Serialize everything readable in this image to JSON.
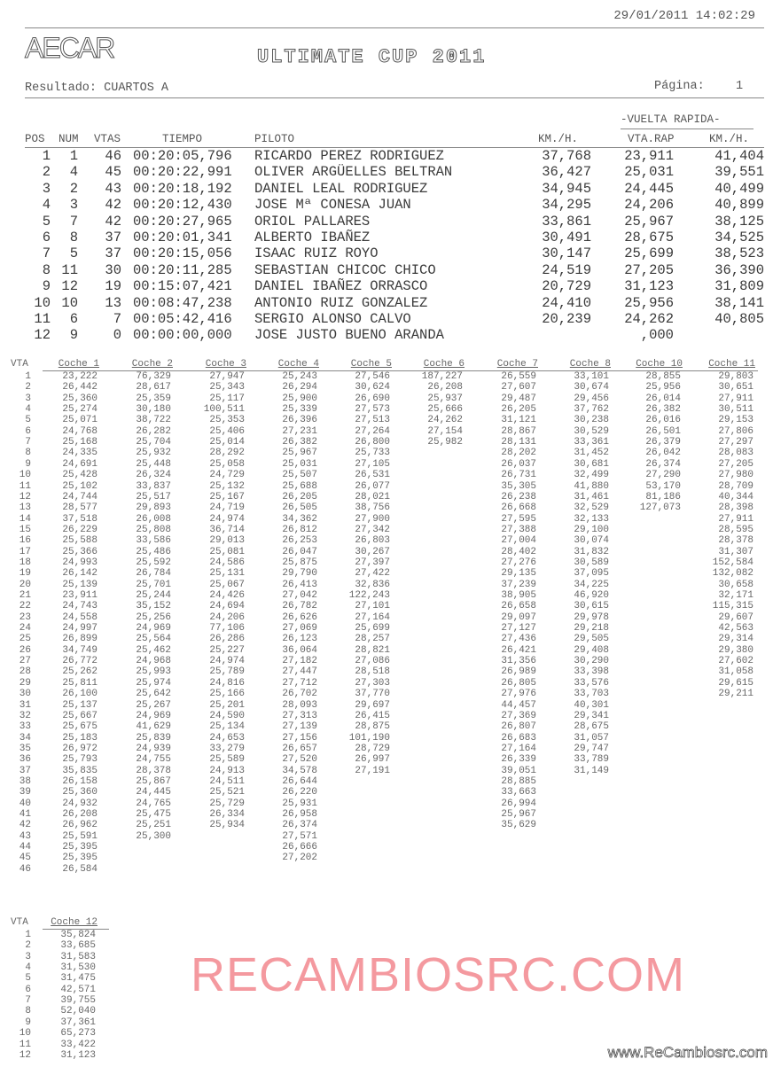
{
  "header": {
    "datetime": "29/01/2011 14:02:29",
    "logo": "AECAR",
    "title": "ULTIMATE CUP 2011",
    "result_label": "Resultado: CUARTOS A",
    "page_label": "Página:",
    "page_number": "1"
  },
  "results": {
    "group_header": "-VUELTA RAPIDA-",
    "columns": {
      "pos": "POS",
      "num": "NUM",
      "vtas": "VTAS",
      "tiempo": "TIEMPO",
      "piloto": "PILOTO",
      "kmh": "KM./H.",
      "vta_rap": "VTA.RAP",
      "kmh_rap": "KM./H."
    },
    "rows": [
      {
        "pos": "1",
        "num": "1",
        "vtas": "46",
        "tiempo": "00:20:05,796",
        "piloto": "RICARDO PEREZ RODRIGUEZ",
        "kmh": "37,768",
        "vta_rap": "23,911",
        "kmh_rap": "41,404"
      },
      {
        "pos": "2",
        "num": "4",
        "vtas": "45",
        "tiempo": "00:20:22,991",
        "piloto": "OLIVER ARGÜELLES BELTRAN",
        "kmh": "36,427",
        "vta_rap": "25,031",
        "kmh_rap": "39,551"
      },
      {
        "pos": "3",
        "num": "2",
        "vtas": "43",
        "tiempo": "00:20:18,192",
        "piloto": "DANIEL LEAL RODRIGUEZ",
        "kmh": "34,945",
        "vta_rap": "24,445",
        "kmh_rap": "40,499"
      },
      {
        "pos": "4",
        "num": "3",
        "vtas": "42",
        "tiempo": "00:20:12,430",
        "piloto": "JOSE Mª CONESA JUAN",
        "kmh": "34,295",
        "vta_rap": "24,206",
        "kmh_rap": "40,899"
      },
      {
        "pos": "5",
        "num": "7",
        "vtas": "42",
        "tiempo": "00:20:27,965",
        "piloto": "ORIOL PALLARES",
        "kmh": "33,861",
        "vta_rap": "25,967",
        "kmh_rap": "38,125"
      },
      {
        "pos": "6",
        "num": "8",
        "vtas": "37",
        "tiempo": "00:20:01,341",
        "piloto": "ALBERTO IBAÑEZ",
        "kmh": "30,491",
        "vta_rap": "28,675",
        "kmh_rap": "34,525"
      },
      {
        "pos": "7",
        "num": "5",
        "vtas": "37",
        "tiempo": "00:20:15,056",
        "piloto": "ISAAC RUIZ ROYO",
        "kmh": "30,147",
        "vta_rap": "25,699",
        "kmh_rap": "38,523"
      },
      {
        "pos": "8",
        "num": "11",
        "vtas": "30",
        "tiempo": "00:20:11,285",
        "piloto": "SEBASTIAN CHICOC CHICO",
        "kmh": "24,519",
        "vta_rap": "27,205",
        "kmh_rap": "36,390"
      },
      {
        "pos": "9",
        "num": "12",
        "vtas": "19",
        "tiempo": "00:15:07,421",
        "piloto": "DANIEL IBAÑEZ ORRASCO",
        "kmh": "20,729",
        "vta_rap": "31,123",
        "kmh_rap": "31,809"
      },
      {
        "pos": "10",
        "num": "10",
        "vtas": "13",
        "tiempo": "00:08:47,238",
        "piloto": "ANTONIO RUIZ GONZALEZ",
        "kmh": "24,410",
        "vta_rap": "25,956",
        "kmh_rap": "38,141"
      },
      {
        "pos": "11",
        "num": "6",
        "vtas": "7",
        "tiempo": "00:05:42,416",
        "piloto": "SERGIO ALONSO CALVO",
        "kmh": "20,239",
        "vta_rap": "24,262",
        "kmh_rap": "40,805"
      },
      {
        "pos": "12",
        "num": "9",
        "vtas": "0",
        "tiempo": "00:00:00,000",
        "piloto": "JOSE JUSTO BUENO ARANDA",
        "kmh": "",
        "vta_rap": ",000",
        "kmh_rap": ""
      }
    ]
  },
  "laps": {
    "vta_label": "VTA",
    "cars": [
      {
        "label": "Coche 1",
        "times": [
          "23,222",
          "26,442",
          "25,360",
          "25,274",
          "25,071",
          "24,768",
          "25,168",
          "24,335",
          "24,691",
          "25,428",
          "25,102",
          "24,744",
          "28,577",
          "37,518",
          "26,229",
          "25,588",
          "25,366",
          "24,993",
          "26,142",
          "25,139",
          "23,911",
          "24,743",
          "24,558",
          "24,997",
          "26,899",
          "34,749",
          "26,772",
          "25,262",
          "25,811",
          "26,100",
          "25,137",
          "25,667",
          "25,675",
          "25,183",
          "26,972",
          "25,793",
          "35,835",
          "26,158",
          "25,360",
          "24,932",
          "26,208",
          "26,962",
          "25,591",
          "25,395",
          "25,395",
          "26,584"
        ]
      },
      {
        "label": "Coche 2",
        "times": [
          "76,329",
          "28,617",
          "25,359",
          "30,180",
          "38,722",
          "26,282",
          "25,704",
          "25,932",
          "25,448",
          "26,324",
          "33,837",
          "25,517",
          "29,893",
          "26,008",
          "25,808",
          "33,586",
          "25,486",
          "25,592",
          "26,784",
          "25,701",
          "25,244",
          "35,152",
          "25,256",
          "24,969",
          "25,564",
          "25,462",
          "24,968",
          "25,993",
          "25,974",
          "25,642",
          "25,267",
          "24,969",
          "41,629",
          "25,839",
          "24,939",
          "24,755",
          "28,378",
          "25,867",
          "24,445",
          "24,765",
          "25,475",
          "25,251",
          "25,300"
        ]
      },
      {
        "label": "Coche 3",
        "times": [
          "27,947",
          "25,343",
          "25,117",
          "100,511",
          "25,353",
          "25,406",
          "25,014",
          "28,292",
          "25,058",
          "24,729",
          "25,132",
          "25,167",
          "24,719",
          "24,974",
          "36,714",
          "29,013",
          "25,081",
          "24,586",
          "25,131",
          "25,067",
          "24,426",
          "24,694",
          "24,206",
          "77,106",
          "26,286",
          "25,227",
          "24,974",
          "25,789",
          "24,816",
          "25,166",
          "25,201",
          "24,590",
          "25,134",
          "24,653",
          "33,279",
          "25,589",
          "24,913",
          "24,511",
          "25,521",
          "25,729",
          "26,334",
          "25,934"
        ]
      },
      {
        "label": "Coche 4",
        "times": [
          "25,243",
          "26,294",
          "25,900",
          "25,339",
          "26,396",
          "27,231",
          "26,382",
          "25,967",
          "25,031",
          "25,507",
          "25,688",
          "26,205",
          "26,505",
          "34,362",
          "26,812",
          "26,253",
          "26,047",
          "25,875",
          "29,790",
          "26,413",
          "27,042",
          "26,782",
          "26,626",
          "27,069",
          "26,123",
          "36,064",
          "27,182",
          "27,447",
          "27,712",
          "26,702",
          "28,093",
          "27,313",
          "27,139",
          "27,156",
          "26,657",
          "27,520",
          "34,578",
          "26,644",
          "26,220",
          "25,931",
          "26,958",
          "26,374",
          "27,571",
          "26,666",
          "27,202"
        ]
      },
      {
        "label": "Coche 5",
        "times": [
          "27,546",
          "30,624",
          "26,690",
          "27,573",
          "27,513",
          "27,264",
          "26,800",
          "25,733",
          "27,105",
          "26,531",
          "26,077",
          "28,021",
          "38,756",
          "27,900",
          "27,342",
          "26,803",
          "30,267",
          "27,397",
          "27,422",
          "32,836",
          "122,243",
          "27,101",
          "27,164",
          "25,699",
          "28,257",
          "28,821",
          "27,086",
          "28,518",
          "27,303",
          "37,770",
          "29,697",
          "26,415",
          "28,875",
          "101,190",
          "28,729",
          "26,997",
          "27,191"
        ]
      },
      {
        "label": "Coche 6",
        "times": [
          "187,227",
          "26,208",
          "25,937",
          "25,666",
          "24,262",
          "27,154",
          "25,982"
        ]
      },
      {
        "label": "Coche 7",
        "times": [
          "26,559",
          "27,607",
          "29,487",
          "26,205",
          "31,121",
          "28,867",
          "28,131",
          "28,202",
          "26,037",
          "26,731",
          "35,305",
          "26,238",
          "26,668",
          "27,595",
          "27,388",
          "27,004",
          "28,402",
          "27,276",
          "29,135",
          "37,239",
          "38,905",
          "26,658",
          "29,097",
          "27,127",
          "27,436",
          "26,421",
          "31,356",
          "26,989",
          "26,805",
          "27,976",
          "44,457",
          "27,369",
          "26,807",
          "26,683",
          "27,164",
          "26,339",
          "39,051",
          "28,885",
          "33,663",
          "26,994",
          "25,967",
          "35,629"
        ]
      },
      {
        "label": "Coche 8",
        "times": [
          "33,101",
          "30,674",
          "29,456",
          "37,762",
          "30,238",
          "30,529",
          "33,361",
          "31,452",
          "30,681",
          "32,499",
          "41,880",
          "31,461",
          "32,529",
          "32,133",
          "29,100",
          "30,074",
          "31,832",
          "30,589",
          "37,095",
          "34,225",
          "46,920",
          "30,615",
          "29,978",
          "29,218",
          "29,505",
          "29,408",
          "30,290",
          "33,398",
          "33,576",
          "33,703",
          "40,301",
          "29,341",
          "28,675",
          "31,057",
          "29,747",
          "33,789",
          "31,149"
        ]
      },
      {
        "label": "Coche 10",
        "times": [
          "28,855",
          "25,956",
          "26,014",
          "26,382",
          "26,016",
          "26,501",
          "26,379",
          "26,042",
          "26,374",
          "27,290",
          "53,170",
          "81,186",
          "127,073"
        ]
      },
      {
        "label": "Coche 11",
        "times": [
          "29,803",
          "30,651",
          "27,911",
          "30,511",
          "29,153",
          "27,806",
          "27,297",
          "28,083",
          "27,205",
          "27,980",
          "28,709",
          "40,344",
          "28,398",
          "27,911",
          "28,595",
          "28,378",
          "31,307",
          "152,584",
          "132,082",
          "30,658",
          "32,171",
          "115,315",
          "29,607",
          "42,563",
          "29,314",
          "29,380",
          "27,602",
          "31,058",
          "29,615",
          "29,211"
        ]
      }
    ],
    "second_block": {
      "vta_label": "VTA",
      "cars": [
        {
          "label": "Coche 12",
          "times": [
            "35,824",
            "33,685",
            "31,583",
            "31,530",
            "31,475",
            "42,571",
            "39,755",
            "52,040",
            "37,361",
            "65,273",
            "33,422",
            "31,123"
          ]
        }
      ]
    }
  },
  "watermark": "RECAMBIOSRC.COM",
  "footer_site": "www.ReCambiosrc.com",
  "colors": {
    "watermark": "#eb4650",
    "text": "#444444"
  }
}
